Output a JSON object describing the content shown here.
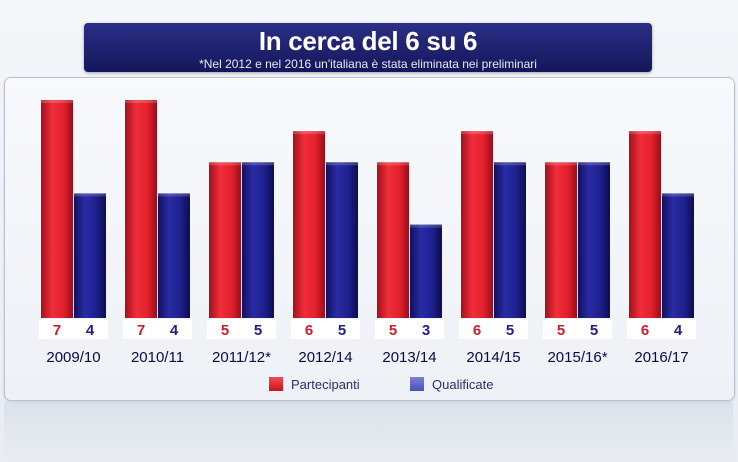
{
  "header": {
    "title": "In cerca del 6 su 6",
    "subtitle": "*Nel 2012 e nel 2016 un'italiana è stata eliminata nei preliminari"
  },
  "colors": {
    "partecipanti": "#e3202c",
    "qualificate": "#1e1f8c",
    "value_red": "#c8202a",
    "value_blue": "#1e1f8c",
    "category": "#0a0c4a"
  },
  "chart_data": {
    "type": "bar",
    "title": "In cerca del 6 su 6",
    "categories": [
      "2009/10",
      "2010/11",
      "2011/12*",
      "2012/14",
      "2013/14",
      "2014/15",
      "2015/16*",
      "2016/17"
    ],
    "series": [
      {
        "name": "Partecipanti",
        "values": [
          7,
          7,
          5,
          6,
          5,
          6,
          5,
          6
        ]
      },
      {
        "name": "Qualificate",
        "values": [
          4,
          4,
          5,
          5,
          3,
          5,
          5,
          4
        ]
      }
    ],
    "ylim": [
      0,
      7
    ],
    "grid": false,
    "legend": "bottom"
  }
}
